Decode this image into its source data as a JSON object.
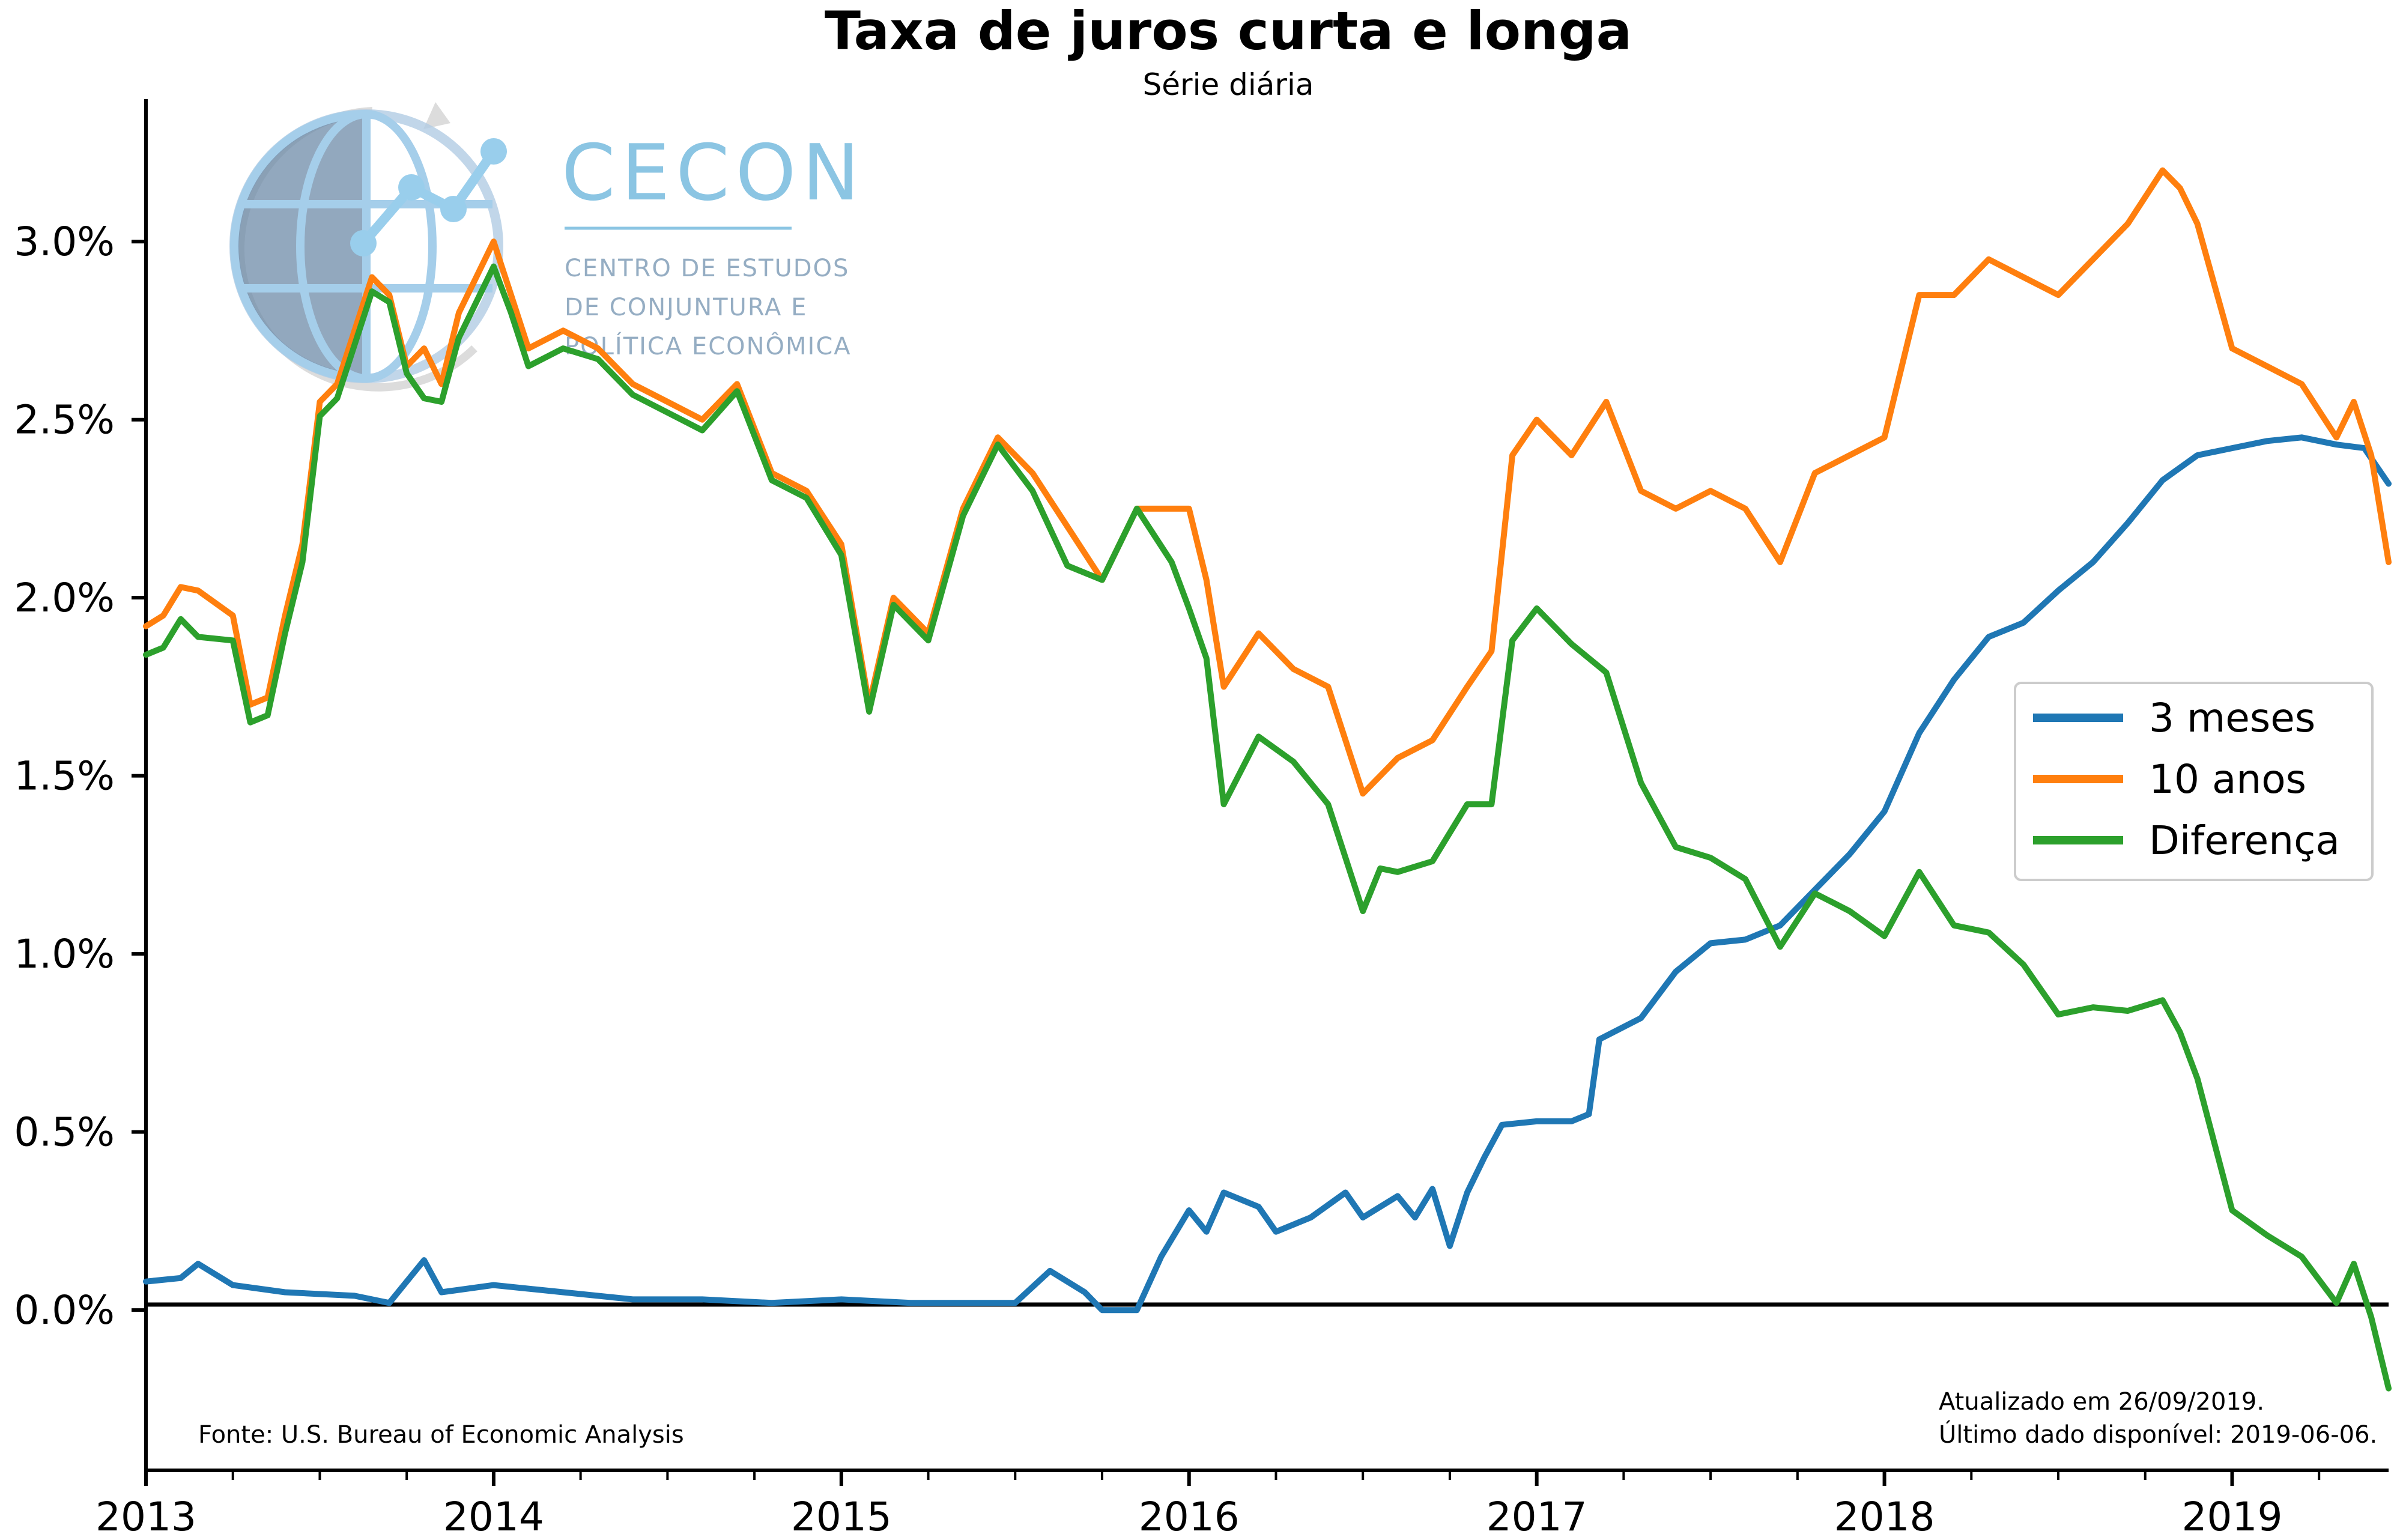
{
  "chart_data": {
    "type": "line",
    "title": "Taxa de juros curta e longa",
    "subtitle": "Série diária",
    "xlabel": "",
    "ylabel": "",
    "xlim": [
      2013.0,
      2019.45
    ],
    "ylim": [
      -0.45,
      3.4
    ],
    "x_ticks": [
      "2013",
      "2014",
      "2015",
      "2016",
      "2017",
      "2018",
      "2019"
    ],
    "y_ticks": [
      "0.0%",
      "0.5%",
      "1.0%",
      "1.5%",
      "2.0%",
      "2.5%",
      "3.0%"
    ],
    "zero_line": true,
    "grid": false,
    "legend_position": "right",
    "series": [
      {
        "name": "3 meses",
        "color": "#1f77b4",
        "points": [
          [
            2013.0,
            0.08
          ],
          [
            2013.1,
            0.09
          ],
          [
            2013.15,
            0.13
          ],
          [
            2013.25,
            0.07
          ],
          [
            2013.4,
            0.05
          ],
          [
            2013.6,
            0.04
          ],
          [
            2013.7,
            0.02
          ],
          [
            2013.8,
            0.14
          ],
          [
            2013.85,
            0.05
          ],
          [
            2014.0,
            0.07
          ],
          [
            2014.2,
            0.05
          ],
          [
            2014.4,
            0.03
          ],
          [
            2014.6,
            0.03
          ],
          [
            2014.8,
            0.02
          ],
          [
            2015.0,
            0.03
          ],
          [
            2015.2,
            0.02
          ],
          [
            2015.4,
            0.02
          ],
          [
            2015.5,
            0.02
          ],
          [
            2015.6,
            0.11
          ],
          [
            2015.7,
            0.05
          ],
          [
            2015.75,
            0.0
          ],
          [
            2015.85,
            0.0
          ],
          [
            2015.92,
            0.15
          ],
          [
            2016.0,
            0.28
          ],
          [
            2016.05,
            0.22
          ],
          [
            2016.1,
            0.33
          ],
          [
            2016.2,
            0.29
          ],
          [
            2016.25,
            0.22
          ],
          [
            2016.35,
            0.26
          ],
          [
            2016.45,
            0.33
          ],
          [
            2016.5,
            0.26
          ],
          [
            2016.6,
            0.32
          ],
          [
            2016.65,
            0.26
          ],
          [
            2016.7,
            0.34
          ],
          [
            2016.75,
            0.18
          ],
          [
            2016.8,
            0.33
          ],
          [
            2016.85,
            0.43
          ],
          [
            2016.9,
            0.52
          ],
          [
            2017.0,
            0.53
          ],
          [
            2017.1,
            0.53
          ],
          [
            2017.15,
            0.55
          ],
          [
            2017.18,
            0.76
          ],
          [
            2017.3,
            0.82
          ],
          [
            2017.4,
            0.95
          ],
          [
            2017.5,
            1.03
          ],
          [
            2017.6,
            1.04
          ],
          [
            2017.7,
            1.08
          ],
          [
            2017.8,
            1.18
          ],
          [
            2017.9,
            1.28
          ],
          [
            2018.0,
            1.4
          ],
          [
            2018.1,
            1.62
          ],
          [
            2018.2,
            1.77
          ],
          [
            2018.3,
            1.89
          ],
          [
            2018.4,
            1.93
          ],
          [
            2018.5,
            2.02
          ],
          [
            2018.6,
            2.1
          ],
          [
            2018.7,
            2.21
          ],
          [
            2018.8,
            2.33
          ],
          [
            2018.9,
            2.4
          ],
          [
            2019.0,
            2.42
          ],
          [
            2019.1,
            2.44
          ],
          [
            2019.2,
            2.45
          ],
          [
            2019.3,
            2.43
          ],
          [
            2019.38,
            2.42
          ],
          [
            2019.45,
            2.32
          ]
        ]
      },
      {
        "name": "10 anos",
        "color": "#ff7f0e",
        "points": [
          [
            2013.0,
            1.92
          ],
          [
            2013.05,
            1.95
          ],
          [
            2013.1,
            2.03
          ],
          [
            2013.15,
            2.02
          ],
          [
            2013.25,
            1.95
          ],
          [
            2013.3,
            1.7
          ],
          [
            2013.35,
            1.72
          ],
          [
            2013.4,
            1.95
          ],
          [
            2013.45,
            2.15
          ],
          [
            2013.5,
            2.55
          ],
          [
            2013.55,
            2.6
          ],
          [
            2013.6,
            2.75
          ],
          [
            2013.65,
            2.9
          ],
          [
            2013.7,
            2.85
          ],
          [
            2013.75,
            2.65
          ],
          [
            2013.8,
            2.7
          ],
          [
            2013.85,
            2.6
          ],
          [
            2013.9,
            2.8
          ],
          [
            2013.95,
            2.9
          ],
          [
            2014.0,
            3.0
          ],
          [
            2014.05,
            2.85
          ],
          [
            2014.1,
            2.7
          ],
          [
            2014.2,
            2.75
          ],
          [
            2014.3,
            2.7
          ],
          [
            2014.4,
            2.6
          ],
          [
            2014.5,
            2.55
          ],
          [
            2014.6,
            2.5
          ],
          [
            2014.7,
            2.6
          ],
          [
            2014.8,
            2.35
          ],
          [
            2014.9,
            2.3
          ],
          [
            2015.0,
            2.15
          ],
          [
            2015.08,
            1.7
          ],
          [
            2015.15,
            2.0
          ],
          [
            2015.25,
            1.9
          ],
          [
            2015.35,
            2.25
          ],
          [
            2015.45,
            2.45
          ],
          [
            2015.55,
            2.35
          ],
          [
            2015.65,
            2.2
          ],
          [
            2015.75,
            2.05
          ],
          [
            2015.85,
            2.25
          ],
          [
            2015.95,
            2.25
          ],
          [
            2016.0,
            2.25
          ],
          [
            2016.05,
            2.05
          ],
          [
            2016.1,
            1.75
          ],
          [
            2016.2,
            1.9
          ],
          [
            2016.3,
            1.8
          ],
          [
            2016.4,
            1.75
          ],
          [
            2016.5,
            1.45
          ],
          [
            2016.55,
            1.5
          ],
          [
            2016.6,
            1.55
          ],
          [
            2016.7,
            1.6
          ],
          [
            2016.8,
            1.75
          ],
          [
            2016.87,
            1.85
          ],
          [
            2016.93,
            2.4
          ],
          [
            2017.0,
            2.5
          ],
          [
            2017.1,
            2.4
          ],
          [
            2017.2,
            2.55
          ],
          [
            2017.3,
            2.3
          ],
          [
            2017.4,
            2.25
          ],
          [
            2017.5,
            2.3
          ],
          [
            2017.6,
            2.25
          ],
          [
            2017.7,
            2.1
          ],
          [
            2017.8,
            2.35
          ],
          [
            2017.9,
            2.4
          ],
          [
            2018.0,
            2.45
          ],
          [
            2018.1,
            2.85
          ],
          [
            2018.2,
            2.85
          ],
          [
            2018.3,
            2.95
          ],
          [
            2018.4,
            2.9
          ],
          [
            2018.5,
            2.85
          ],
          [
            2018.6,
            2.95
          ],
          [
            2018.7,
            3.05
          ],
          [
            2018.8,
            3.2
          ],
          [
            2018.85,
            3.15
          ],
          [
            2018.9,
            3.05
          ],
          [
            2019.0,
            2.7
          ],
          [
            2019.1,
            2.65
          ],
          [
            2019.2,
            2.6
          ],
          [
            2019.3,
            2.45
          ],
          [
            2019.35,
            2.55
          ],
          [
            2019.4,
            2.4
          ],
          [
            2019.45,
            2.1
          ]
        ]
      },
      {
        "name": "Diferença",
        "color": "#2ca02c",
        "points": [
          [
            2013.0,
            1.84
          ],
          [
            2013.05,
            1.86
          ],
          [
            2013.1,
            1.94
          ],
          [
            2013.15,
            1.89
          ],
          [
            2013.25,
            1.88
          ],
          [
            2013.3,
            1.65
          ],
          [
            2013.35,
            1.67
          ],
          [
            2013.4,
            1.9
          ],
          [
            2013.45,
            2.1
          ],
          [
            2013.5,
            2.51
          ],
          [
            2013.55,
            2.56
          ],
          [
            2013.6,
            2.71
          ],
          [
            2013.65,
            2.86
          ],
          [
            2013.7,
            2.83
          ],
          [
            2013.75,
            2.63
          ],
          [
            2013.8,
            2.56
          ],
          [
            2013.85,
            2.55
          ],
          [
            2013.9,
            2.73
          ],
          [
            2013.95,
            2.83
          ],
          [
            2014.0,
            2.93
          ],
          [
            2014.05,
            2.8
          ],
          [
            2014.1,
            2.65
          ],
          [
            2014.2,
            2.7
          ],
          [
            2014.3,
            2.67
          ],
          [
            2014.4,
            2.57
          ],
          [
            2014.5,
            2.52
          ],
          [
            2014.6,
            2.47
          ],
          [
            2014.7,
            2.58
          ],
          [
            2014.8,
            2.33
          ],
          [
            2014.9,
            2.28
          ],
          [
            2015.0,
            2.12
          ],
          [
            2015.08,
            1.68
          ],
          [
            2015.15,
            1.98
          ],
          [
            2015.25,
            1.88
          ],
          [
            2015.35,
            2.23
          ],
          [
            2015.45,
            2.43
          ],
          [
            2015.55,
            2.3
          ],
          [
            2015.65,
            2.09
          ],
          [
            2015.75,
            2.05
          ],
          [
            2015.85,
            2.25
          ],
          [
            2015.95,
            2.1
          ],
          [
            2016.0,
            1.97
          ],
          [
            2016.05,
            1.83
          ],
          [
            2016.1,
            1.42
          ],
          [
            2016.2,
            1.61
          ],
          [
            2016.3,
            1.54
          ],
          [
            2016.4,
            1.42
          ],
          [
            2016.5,
            1.12
          ],
          [
            2016.55,
            1.24
          ],
          [
            2016.6,
            1.23
          ],
          [
            2016.7,
            1.26
          ],
          [
            2016.8,
            1.42
          ],
          [
            2016.87,
            1.42
          ],
          [
            2016.93,
            1.88
          ],
          [
            2017.0,
            1.97
          ],
          [
            2017.1,
            1.87
          ],
          [
            2017.2,
            1.79
          ],
          [
            2017.3,
            1.48
          ],
          [
            2017.4,
            1.3
          ],
          [
            2017.5,
            1.27
          ],
          [
            2017.6,
            1.21
          ],
          [
            2017.7,
            1.02
          ],
          [
            2017.8,
            1.17
          ],
          [
            2017.9,
            1.12
          ],
          [
            2018.0,
            1.05
          ],
          [
            2018.1,
            1.23
          ],
          [
            2018.2,
            1.08
          ],
          [
            2018.3,
            1.06
          ],
          [
            2018.4,
            0.97
          ],
          [
            2018.5,
            0.83
          ],
          [
            2018.6,
            0.85
          ],
          [
            2018.7,
            0.84
          ],
          [
            2018.8,
            0.87
          ],
          [
            2018.85,
            0.78
          ],
          [
            2018.9,
            0.65
          ],
          [
            2019.0,
            0.28
          ],
          [
            2019.1,
            0.21
          ],
          [
            2019.2,
            0.15
          ],
          [
            2019.3,
            0.02
          ],
          [
            2019.35,
            0.13
          ],
          [
            2019.4,
            -0.02
          ],
          [
            2019.45,
            -0.22
          ]
        ]
      }
    ]
  },
  "source_note": "Fonte: U.S. Bureau of Economic Analysis",
  "update_note_1": "Atualizado em 26/09/2019.",
  "update_note_2": "Último dado disponível: 2019-06-06.",
  "logo": {
    "name": "CECON",
    "line1": "CENTRO DE ESTUDOS",
    "line2": "DE CONJUNTURA E",
    "line3": "POLÍTICA ECONÔMICA",
    "color": "#7fbfe0"
  }
}
